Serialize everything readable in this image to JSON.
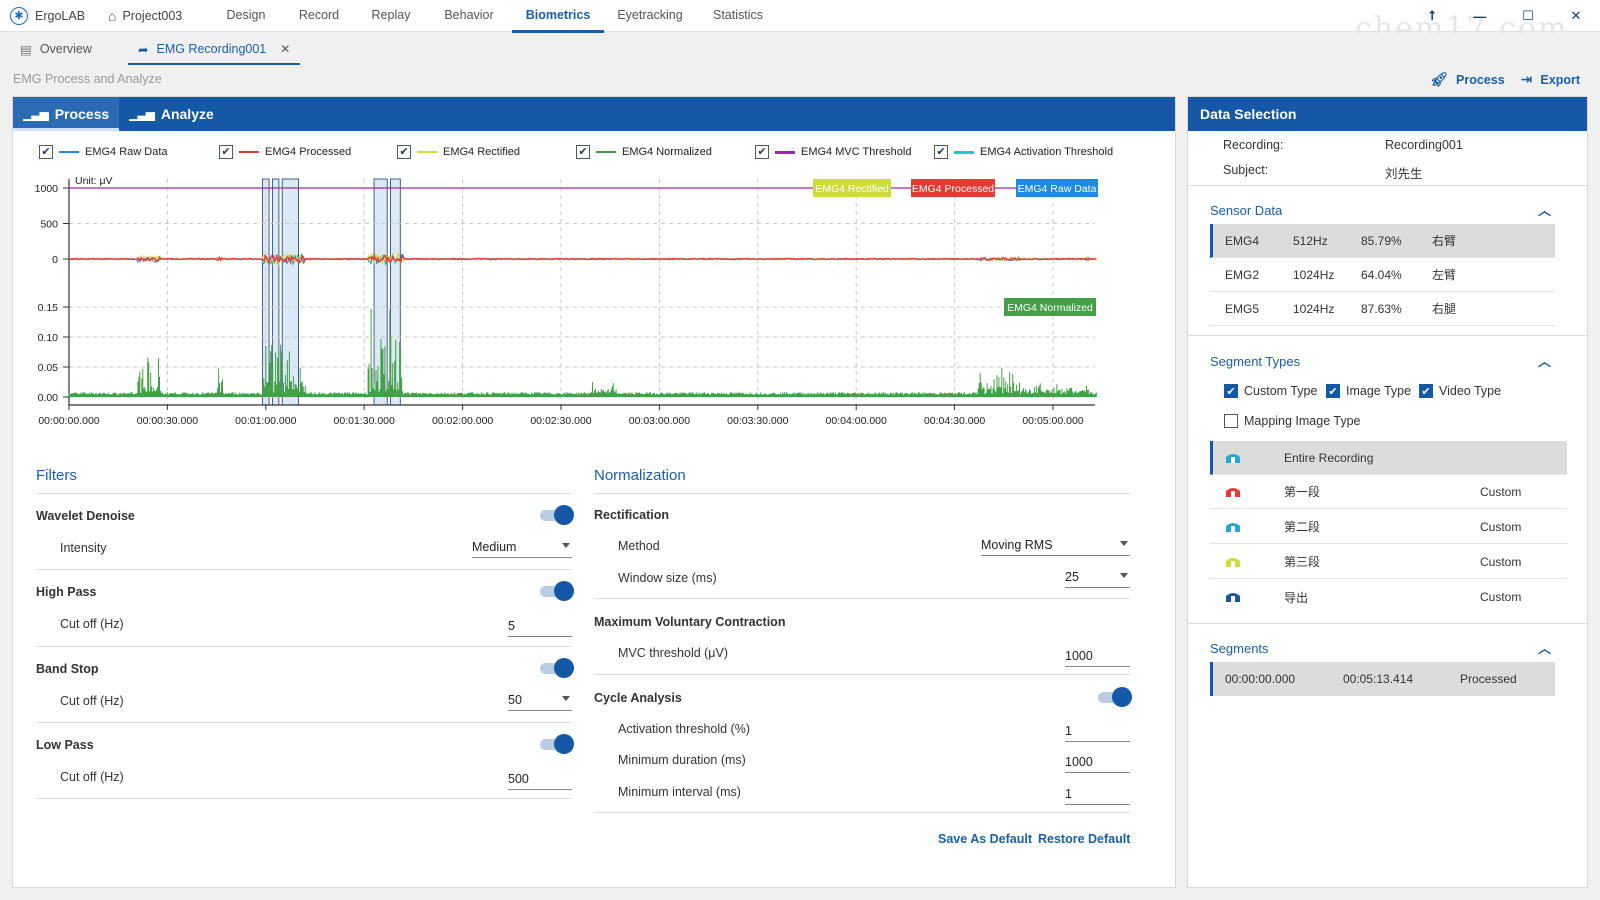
{
  "app": {
    "name": "ErgoLAB",
    "project": "Project003",
    "watermark": "chem17.com"
  },
  "nav": [
    "Design",
    "Record",
    "Replay",
    "Behavior",
    "Biometrics",
    "Eyetracking",
    "Statistics"
  ],
  "nav_active": "Biometrics",
  "tabs": [
    {
      "label": "Overview"
    },
    {
      "label": "EMG Recording001"
    }
  ],
  "page_title": "EMG Process and Analyze",
  "actions": {
    "process": "Process",
    "export": "Export"
  },
  "panel_tabs": {
    "process": "Process",
    "analyze": "Analyze"
  },
  "legend": [
    {
      "label": "EMG4 Raw Data",
      "color": "#1e88e5"
    },
    {
      "label": "EMG4 Processed",
      "color": "#e53935"
    },
    {
      "label": "EMG4 Rectified",
      "color": "#cddc39"
    },
    {
      "label": "EMG4 Normalized",
      "color": "#43a047"
    },
    {
      "label": "EMG4 MVC Threshold",
      "color": "#9c27b0"
    },
    {
      "label": "EMG4 Activation Threshold",
      "color": "#26c6da"
    }
  ],
  "chart_data": {
    "type": "line",
    "unit_label": "Unit: μV",
    "top": {
      "yticks": [
        "1000",
        "500",
        "0"
      ],
      "ylim": [
        -250,
        1000
      ],
      "mvc_threshold": 1000
    },
    "bottom": {
      "yticks": [
        "0.15",
        "0.10",
        "0.05",
        "0.00"
      ],
      "ylim": [
        0,
        0.15
      ]
    },
    "xticks": [
      "00:00:00.000",
      "00:00:30.000",
      "00:01:00.000",
      "00:01:30.000",
      "00:02:00.000",
      "00:02:30.000",
      "00:03:00.000",
      "00:03:30.000",
      "00:04:00.000",
      "00:04:30.000",
      "00:05:00.000"
    ],
    "xlim_s": [
      0,
      313.414
    ],
    "series": [
      {
        "name": "EMG4 Raw Data",
        "color": "#1e88e5"
      },
      {
        "name": "EMG4 Processed",
        "color": "#e53935"
      },
      {
        "name": "EMG4 Rectified",
        "color": "#cddc39"
      },
      {
        "name": "EMG4 Normalized",
        "color": "#43a047"
      }
    ],
    "bursts_s": [
      {
        "start": 21,
        "end": 28,
        "amp": 0.09
      },
      {
        "start": 45,
        "end": 47,
        "amp": 0.05
      },
      {
        "start": 59,
        "end": 72,
        "amp": 0.14
      },
      {
        "start": 91,
        "end": 102,
        "amp": 0.15
      },
      {
        "start": 159,
        "end": 167,
        "amp": 0.02
      },
      {
        "start": 277,
        "end": 290,
        "amp": 0.05
      },
      {
        "start": 290,
        "end": 310,
        "amp": 0.02
      },
      {
        "start": 310,
        "end": 311,
        "amp": 0.06
      }
    ],
    "highlight_regions_s": [
      [
        59,
        61
      ],
      [
        62,
        64
      ],
      [
        65,
        70
      ],
      [
        93,
        97
      ],
      [
        98,
        101
      ]
    ],
    "tags_top": [
      {
        "label": "EMG4 Rectified",
        "color": "#cddc39"
      },
      {
        "label": "EMG4 Processed",
        "color": "#e53935"
      },
      {
        "label": "EMG4 Raw Data",
        "color": "#1e88e5"
      }
    ],
    "tag_bottom": {
      "label": "EMG4 Normalized",
      "color": "#43a047"
    }
  },
  "filters": {
    "title": "Filters",
    "wavelet": {
      "label": "Wavelet Denoise",
      "sub": "Intensity",
      "value": "Medium"
    },
    "highpass": {
      "label": "High Pass",
      "sub": "Cut off (Hz)",
      "value": "5"
    },
    "bandstop": {
      "label": "Band Stop",
      "sub": "Cut off (Hz)",
      "value": "50"
    },
    "lowpass": {
      "label": "Low Pass",
      "sub": "Cut off (Hz)",
      "value": "500"
    }
  },
  "normalization": {
    "title": "Normalization",
    "rect_title": "Rectification",
    "method_label": "Method",
    "method_value": "Moving RMS",
    "window_label": "Window size (ms)",
    "window_value": "25",
    "mvc_title": "Maximum Voluntary Contraction",
    "mvc_label": "MVC threshold (μV)",
    "mvc_value": "1000",
    "cycle_title": "Cycle Analysis",
    "act_label": "Activation threshold (%)",
    "act_value": "1",
    "mindur_label": "Minimum duration (ms)",
    "mindur_value": "1000",
    "minint_label": "Minimum interval (ms)",
    "minint_value": "1",
    "save": "Save As Default",
    "restore": "Restore Default"
  },
  "side": {
    "title": "Data Selection",
    "recording_label": "Recording:",
    "recording_value": "Recording001",
    "subject_label": "Subject:",
    "subject_value": "刘先生",
    "sensor_title": "Sensor Data",
    "sensors": [
      {
        "name": "EMG4",
        "rate": "512Hz",
        "quality": "85.79%",
        "part": "右臂"
      },
      {
        "name": "EMG2",
        "rate": "1024Hz",
        "quality": "64.04%",
        "part": "左臂"
      },
      {
        "name": "EMG5",
        "rate": "1024Hz",
        "quality": "87.63%",
        "part": "右腿"
      }
    ],
    "segtypes_title": "Segment Types",
    "types": {
      "custom": "Custom Type",
      "image": "Image Type",
      "video": "Video Type",
      "mapping": "Mapping Image Type"
    },
    "segments_list": [
      {
        "name": "Entire Recording",
        "type": "",
        "color": "#29a3d6"
      },
      {
        "name": "第一段",
        "type": "Custom",
        "color": "#e53935"
      },
      {
        "name": "第二段",
        "type": "Custom",
        "color": "#29a3d6"
      },
      {
        "name": "第三段",
        "type": "Custom",
        "color": "#cddc39"
      },
      {
        "name": "导出",
        "type": "Custom",
        "color": "#1558a5"
      }
    ],
    "segments_title": "Segments",
    "segment": {
      "start": "00:00:00.000",
      "end": "00:05:13.414",
      "status": "Processed"
    }
  }
}
